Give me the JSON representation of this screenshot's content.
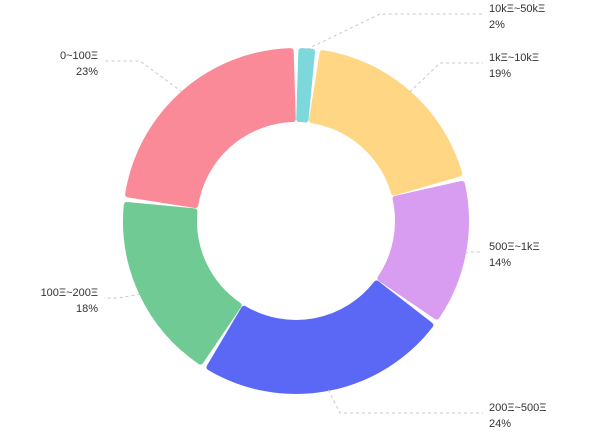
{
  "chart_data": {
    "type": "pie",
    "donut": true,
    "title": "",
    "legend": "none",
    "slices": [
      {
        "label": "10kΞ~50kΞ",
        "value": 2,
        "value_label": "2%",
        "color": "#7dd8dc"
      },
      {
        "label": "1kΞ~10kΞ",
        "value": 19,
        "value_label": "19%",
        "color": "#ffd784"
      },
      {
        "label": "500Ξ~1kΞ",
        "value": 14,
        "value_label": "14%",
        "color": "#d89cf0"
      },
      {
        "label": "200Ξ~500Ξ",
        "value": 24,
        "value_label": "24%",
        "color": "#5a68f5"
      },
      {
        "label": "100Ξ~200Ξ",
        "value": 18,
        "value_label": "18%",
        "color": "#6fca93"
      },
      {
        "label": "0~100Ξ",
        "value": 23,
        "value_label": "23%",
        "color": "#fb8a98"
      }
    ]
  }
}
